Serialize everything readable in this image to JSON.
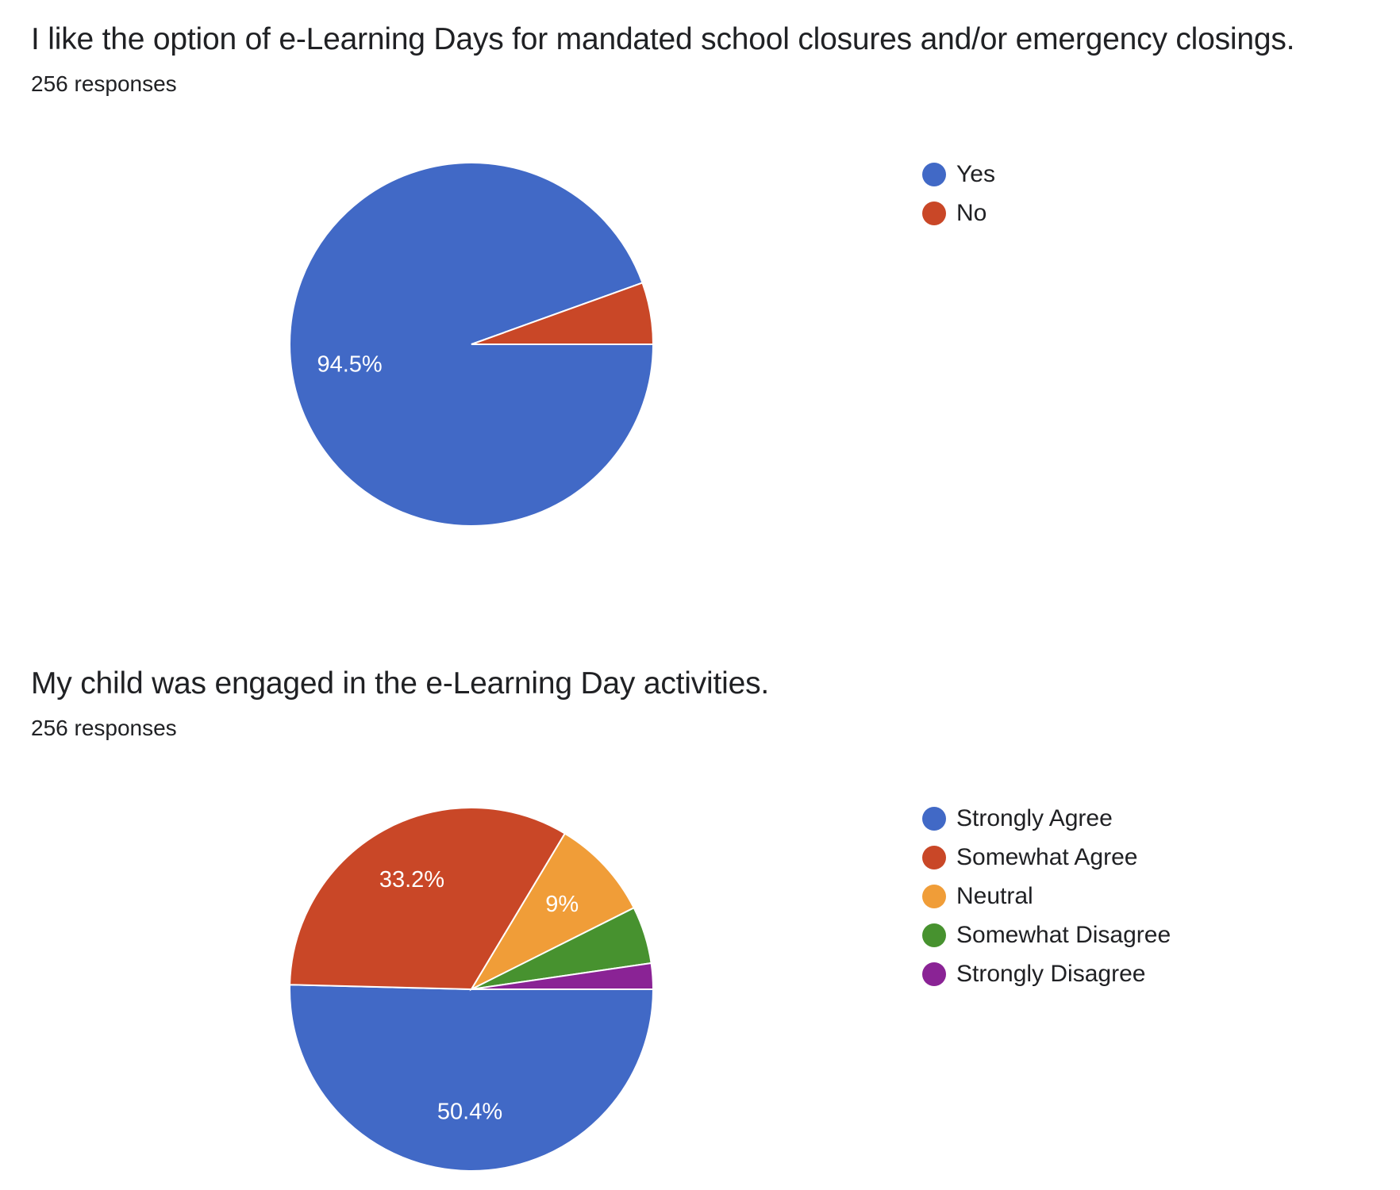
{
  "chart_data": [
    {
      "type": "pie",
      "title": "I like the option of e-Learning Days for mandated school closures and/or emergency closings.",
      "subtitle": "256 responses",
      "categories": [
        "Yes",
        "No"
      ],
      "values": [
        94.5,
        5.5
      ],
      "labels": [
        "94.5%",
        ""
      ],
      "colors": [
        "#4169c6",
        "#c94727"
      ],
      "legend": "right"
    },
    {
      "type": "pie",
      "title": "My child was engaged in the e-Learning Day activities.",
      "subtitle": "256 responses",
      "categories": [
        "Strongly Agree",
        "Somewhat Agree",
        "Neutral",
        "Somewhat Disagree",
        "Strongly Disagree"
      ],
      "values": [
        50.4,
        33.2,
        9,
        5.1,
        2.3
      ],
      "labels": [
        "50.4%",
        "33.2%",
        "9%",
        "",
        ""
      ],
      "colors": [
        "#4169c6",
        "#c94727",
        "#f09d38",
        "#47922f",
        "#8a2395"
      ],
      "legend": "right"
    }
  ]
}
